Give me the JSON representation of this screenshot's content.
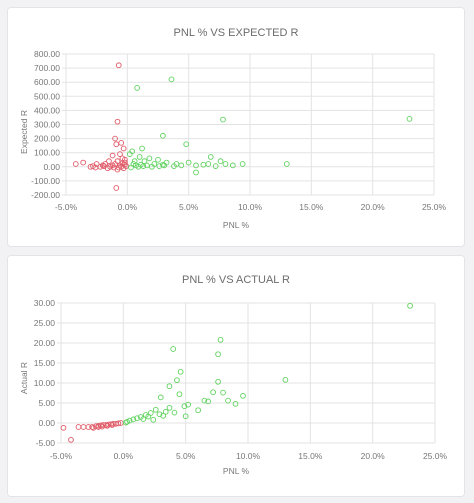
{
  "colors": {
    "negative": "#e05a67",
    "positive": "#5fd35f",
    "grid": "#e3e3e3",
    "text": "#777777"
  },
  "chart_data": [
    {
      "type": "scatter",
      "title": "PNL % VS EXPECTED R",
      "xlabel": "PNL %",
      "ylabel": "Expected R",
      "xlim": [
        -5,
        25
      ],
      "ylim": [
        -200,
        800
      ],
      "grid": true,
      "x_ticks": [
        "-5.0%",
        "0.0%",
        "5.0%",
        "10.0%",
        "15.0%",
        "20.0%",
        "25.0%"
      ],
      "y_ticks": [
        "800.00",
        "700.00",
        "600.00",
        "500.00",
        "400.00",
        "300.00",
        "200.00",
        "100.00",
        "0.00",
        "-100.00",
        "-200.00"
      ],
      "series": [
        {
          "color": "negative",
          "points": [
            [
              -0.7,
              720
            ],
            [
              -0.8,
              320
            ],
            [
              -1.0,
              200
            ],
            [
              -0.9,
              160
            ],
            [
              -0.5,
              170
            ],
            [
              -0.3,
              130
            ],
            [
              -0.6,
              90
            ],
            [
              -1.2,
              80
            ],
            [
              -0.4,
              60
            ],
            [
              -0.8,
              40
            ],
            [
              -1.5,
              40
            ],
            [
              -2.5,
              20
            ],
            [
              -0.2,
              30
            ],
            [
              -0.9,
              -150
            ],
            [
              -3.6,
              30
            ],
            [
              -4.2,
              20
            ],
            [
              -2.0,
              10
            ],
            [
              -1.8,
              20
            ],
            [
              -1.6,
              -10
            ],
            [
              -1.4,
              0
            ],
            [
              -1.2,
              10
            ],
            [
              -1.0,
              20
            ],
            [
              -0.8,
              -20
            ],
            [
              -0.6,
              10
            ],
            [
              -0.5,
              0
            ],
            [
              -0.3,
              -10
            ],
            [
              -0.2,
              15
            ],
            [
              -0.1,
              5
            ],
            [
              -1.1,
              -5
            ],
            [
              -2.2,
              0
            ],
            [
              -2.8,
              5
            ],
            [
              -3.0,
              0
            ],
            [
              -2.6,
              -5
            ],
            [
              -1.9,
              5
            ],
            [
              -0.7,
              -5
            ],
            [
              -0.4,
              25
            ],
            [
              -0.2,
              50
            ]
          ]
        },
        {
          "color": "positive",
          "points": [
            [
              0.8,
              560
            ],
            [
              3.6,
              620
            ],
            [
              23.0,
              340
            ],
            [
              7.8,
              335
            ],
            [
              2.9,
              220
            ],
            [
              4.8,
              160
            ],
            [
              1.2,
              130
            ],
            [
              0.4,
              110
            ],
            [
              0.2,
              90
            ],
            [
              1.0,
              70
            ],
            [
              1.8,
              60
            ],
            [
              2.5,
              50
            ],
            [
              3.2,
              30
            ],
            [
              4.0,
              20
            ],
            [
              5.0,
              30
            ],
            [
              5.6,
              10
            ],
            [
              6.2,
              15
            ],
            [
              6.8,
              70
            ],
            [
              7.2,
              5
            ],
            [
              7.6,
              40
            ],
            [
              8.0,
              20
            ],
            [
              8.6,
              10
            ],
            [
              9.4,
              20
            ],
            [
              13.0,
              20
            ],
            [
              5.6,
              -40
            ],
            [
              0.5,
              20
            ],
            [
              0.7,
              10
            ],
            [
              0.9,
              0
            ],
            [
              1.1,
              15
            ],
            [
              1.3,
              5
            ],
            [
              1.6,
              10
            ],
            [
              2.0,
              0
            ],
            [
              2.2,
              20
            ],
            [
              2.6,
              5
            ],
            [
              2.9,
              15
            ],
            [
              3.0,
              10
            ],
            [
              0.3,
              -5
            ],
            [
              0.6,
              40
            ],
            [
              1.4,
              40
            ],
            [
              3.8,
              5
            ],
            [
              4.4,
              10
            ],
            [
              6.6,
              20
            ]
          ]
        }
      ]
    },
    {
      "type": "scatter",
      "title": "PNL % VS ACTUAL R",
      "xlabel": "PNL %",
      "ylabel": "Actual R",
      "xlim": [
        -5,
        25
      ],
      "ylim": [
        -5,
        30
      ],
      "grid": true,
      "x_ticks": [
        "-5.0%",
        "0.0%",
        "5.0%",
        "10.0%",
        "15.0%",
        "20.0%",
        "25.0%"
      ],
      "y_ticks": [
        "30.00",
        "25.00",
        "20.00",
        "15.00",
        "10.00",
        "5.00",
        "0.00",
        "-5.00"
      ],
      "series": [
        {
          "color": "negative",
          "points": [
            [
              -4.8,
              -1.2
            ],
            [
              -4.2,
              -4.2
            ],
            [
              -3.6,
              -1.0
            ],
            [
              -3.2,
              -1.0
            ],
            [
              -2.8,
              -1.0
            ],
            [
              -2.5,
              -1.0
            ],
            [
              -2.2,
              -0.8
            ],
            [
              -2.0,
              -0.7
            ],
            [
              -1.8,
              -0.6
            ],
            [
              -1.6,
              -0.5
            ],
            [
              -1.4,
              -0.5
            ],
            [
              -1.2,
              -0.4
            ],
            [
              -1.0,
              -0.3
            ],
            [
              -0.8,
              -0.2
            ],
            [
              -0.6,
              -0.2
            ],
            [
              -0.4,
              -0.1
            ],
            [
              -0.2,
              0.0
            ],
            [
              -2.4,
              -1.2
            ],
            [
              -2.0,
              -1.0
            ],
            [
              -1.7,
              -0.9
            ],
            [
              -1.3,
              -0.7
            ],
            [
              -0.9,
              -0.5
            ]
          ]
        },
        {
          "color": "positive",
          "points": [
            [
              23.0,
              29.3
            ],
            [
              7.8,
              20.8
            ],
            [
              4.0,
              18.5
            ],
            [
              7.6,
              17.2
            ],
            [
              13.0,
              10.8
            ],
            [
              4.6,
              12.8
            ],
            [
              4.3,
              10.7
            ],
            [
              7.6,
              10.3
            ],
            [
              3.7,
              9.2
            ],
            [
              7.2,
              7.7
            ],
            [
              8.0,
              7.6
            ],
            [
              9.6,
              6.8
            ],
            [
              4.5,
              7.2
            ],
            [
              3.0,
              6.4
            ],
            [
              6.5,
              5.6
            ],
            [
              6.8,
              5.4
            ],
            [
              6.0,
              3.2
            ],
            [
              4.9,
              4.2
            ],
            [
              5.2,
              4.6
            ],
            [
              3.7,
              3.8
            ],
            [
              3.4,
              2.8
            ],
            [
              2.6,
              3.3
            ],
            [
              2.2,
              2.5
            ],
            [
              1.8,
              2.0
            ],
            [
              1.4,
              1.5
            ],
            [
              1.1,
              1.2
            ],
            [
              0.8,
              0.9
            ],
            [
              0.5,
              0.6
            ],
            [
              0.3,
              0.3
            ],
            [
              0.2,
              0.1
            ],
            [
              1.6,
              1.0
            ],
            [
              2.0,
              1.6
            ],
            [
              2.9,
              2.2
            ],
            [
              3.2,
              1.8
            ],
            [
              4.1,
              2.6
            ],
            [
              5.0,
              1.7
            ],
            [
              2.4,
              0.8
            ],
            [
              8.4,
              5.6
            ],
            [
              9.0,
              4.8
            ]
          ]
        }
      ]
    }
  ]
}
